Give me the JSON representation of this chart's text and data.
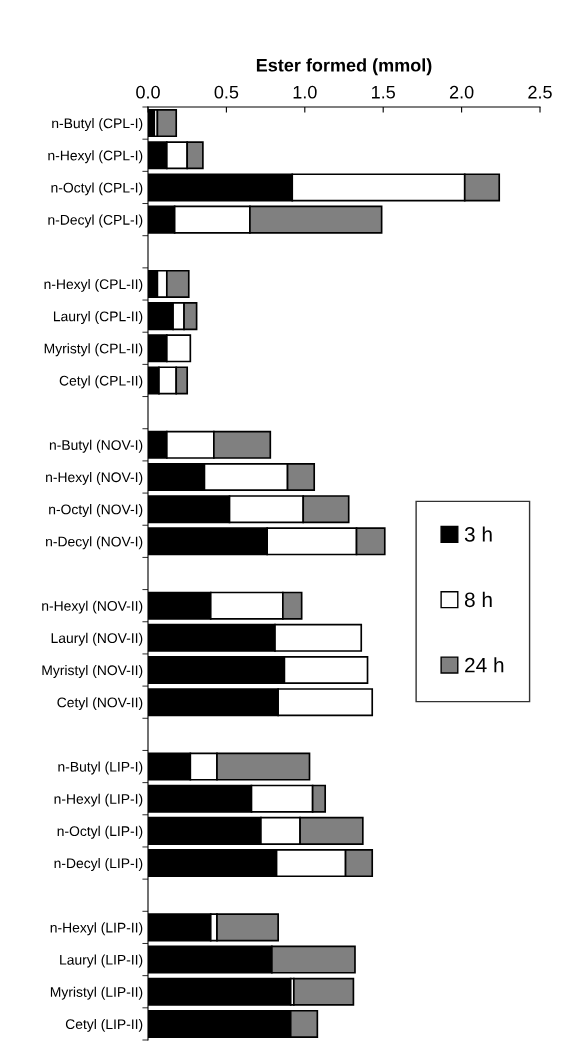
{
  "chart_data": {
    "type": "bar",
    "orientation": "horizontal",
    "stacked": true,
    "xlabel": "Ester formed (mmol)",
    "categories": [
      "n-Butyl (CPL-I)",
      "n-Hexyl (CPL-I)",
      "n-Octyl (CPL-I)",
      "n-Decyl (CPL-I)",
      null,
      "n-Hexyl (CPL-II)",
      "Lauryl (CPL-II)",
      "Myristyl (CPL-II)",
      "Cetyl (CPL-II)",
      null,
      "n-Butyl (NOV-I)",
      "n-Hexyl (NOV-I)",
      "n-Octyl (NOV-I)",
      "n-Decyl (NOV-I)",
      null,
      "n-Hexyl (NOV-II)",
      "Lauryl (NOV-II)",
      "Myristyl (NOV-II)",
      "Cetyl (NOV-II)",
      null,
      "n-Butyl (LIP-I)",
      "n-Hexyl (LIP-I)",
      "n-Octyl (LIP-I)",
      "n-Decyl (LIP-I)",
      null,
      "n-Hexyl (LIP-II)",
      "Lauryl (LIP-II)",
      "Myristyl (LIP-II)",
      "Cetyl (LIP-II)"
    ],
    "series": [
      {
        "name": "3 h",
        "color": "#000000",
        "values": [
          0.04,
          0.12,
          0.92,
          0.17,
          null,
          0.06,
          0.16,
          0.12,
          0.07,
          null,
          0.12,
          0.36,
          0.52,
          0.76,
          null,
          0.4,
          0.81,
          0.87,
          0.83,
          null,
          0.27,
          0.66,
          0.72,
          0.82,
          null,
          0.4,
          0.79,
          0.91,
          0.91
        ]
      },
      {
        "name": "8 h",
        "color": "#ffffff",
        "values": [
          0.02,
          0.13,
          1.1,
          0.48,
          null,
          0.06,
          0.07,
          0.15,
          0.11,
          null,
          0.3,
          0.53,
          0.47,
          0.57,
          null,
          0.46,
          0.55,
          0.53,
          0.6,
          null,
          0.17,
          0.39,
          0.25,
          0.44,
          null,
          0.04,
          null,
          0.02,
          null
        ]
      },
      {
        "name": "24 h",
        "color": "#808080",
        "values": [
          0.12,
          0.1,
          0.22,
          0.84,
          null,
          0.14,
          0.08,
          null,
          0.07,
          null,
          0.36,
          0.17,
          0.29,
          0.18,
          null,
          0.12,
          null,
          null,
          null,
          null,
          0.59,
          0.08,
          0.4,
          0.17,
          null,
          0.39,
          0.53,
          0.38,
          0.17
        ]
      }
    ],
    "xlim": [
      0,
      2.5
    ],
    "xticks": [
      {
        "value": 0,
        "label": "0.0"
      },
      0.5,
      {
        "value": 1,
        "label": "1.0"
      },
      1.5,
      {
        "value": 2,
        "label": "2.0"
      },
      2.5
    ],
    "legend": "right",
    "grid": false
  }
}
